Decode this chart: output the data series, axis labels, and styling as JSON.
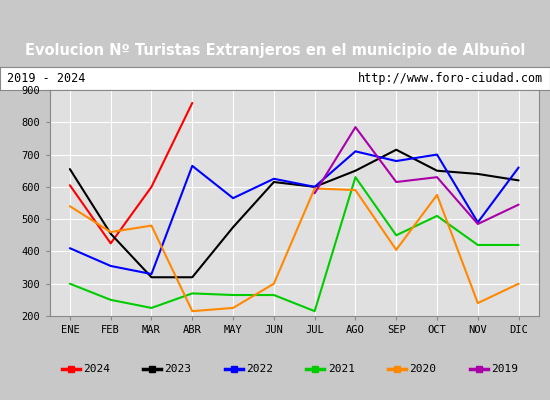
{
  "title": "Evolucion Nº Turistas Extranjeros en el municipio de Albuñol",
  "subtitle_left": "2019 - 2024",
  "subtitle_right": "http://www.foro-ciudad.com",
  "months": [
    "ENE",
    "FEB",
    "MAR",
    "ABR",
    "MAY",
    "JUN",
    "JUL",
    "AGO",
    "SEP",
    "OCT",
    "NOV",
    "DIC"
  ],
  "ylim": [
    200,
    900
  ],
  "yticks": [
    200,
    300,
    400,
    500,
    600,
    700,
    800,
    900
  ],
  "series": {
    "2024": {
      "color": "#ff0000",
      "data": [
        605,
        425,
        600,
        860,
        null,
        null,
        null,
        null,
        null,
        null,
        null,
        null
      ]
    },
    "2023": {
      "color": "#000000",
      "data": [
        655,
        455,
        320,
        320,
        475,
        615,
        600,
        650,
        715,
        650,
        640,
        620
      ]
    },
    "2022": {
      "color": "#0000ff",
      "data": [
        410,
        355,
        330,
        665,
        565,
        625,
        600,
        710,
        680,
        700,
        490,
        660
      ]
    },
    "2021": {
      "color": "#00cc00",
      "data": [
        300,
        250,
        225,
        270,
        265,
        265,
        215,
        630,
        450,
        510,
        420,
        420
      ]
    },
    "2020": {
      "color": "#ff8800",
      "data": [
        540,
        460,
        480,
        215,
        225,
        300,
        595,
        590,
        405,
        575,
        240,
        300
      ]
    },
    "2019": {
      "color": "#aa00aa",
      "data": [
        null,
        null,
        null,
        null,
        null,
        null,
        580,
        785,
        615,
        630,
        485,
        545
      ]
    }
  },
  "legend_order": [
    "2024",
    "2023",
    "2022",
    "2021",
    "2020",
    "2019"
  ],
  "title_bg": "#3d7ab5",
  "title_color": "#ffffff",
  "plot_bg": "#e0e0e0",
  "outer_bg": "#c8c8c8",
  "subtitle_bg": "#ffffff",
  "grid_color": "#ffffff",
  "border_color": "#888888",
  "title_fontsize": 10.5,
  "tick_fontsize": 7.5,
  "legend_fontsize": 8
}
